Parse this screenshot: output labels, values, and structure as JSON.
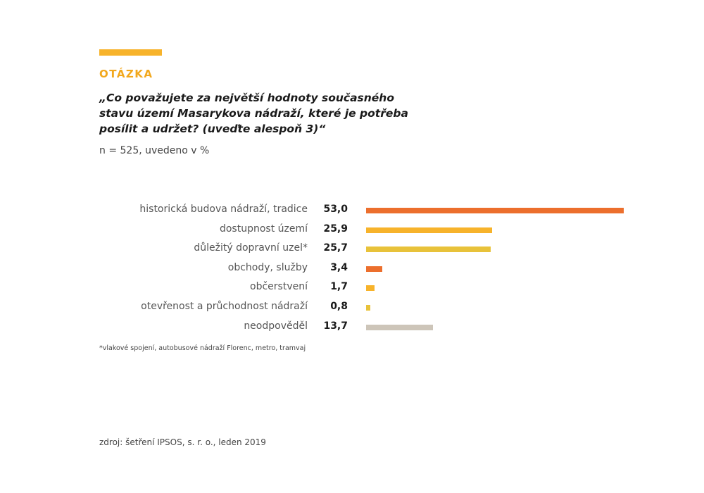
{
  "header": {
    "kicker": "OTÁZKA",
    "question_line1": "„Co považujete za největší hodnoty současného",
    "question_line2": "stavu území Masarykova nádraží, které je potřeba",
    "question_line3": "posílit a udržet? (uveďte alespoň 3)“",
    "sample": "n = 525, uvedeno v %"
  },
  "colors": {
    "accent": "#f7b32b",
    "orange": "#ec6f2d",
    "yellow": "#f7b32b",
    "mustard": "#e8c23a",
    "gray": "#cdc5b9"
  },
  "chart_data": {
    "type": "bar",
    "orientation": "horizontal",
    "categories": [
      "historická budova nádraží, tradice",
      "dostupnost území",
      "důležitý dopravní uzel*",
      "obchody, služby",
      "občerstvení",
      "otevřenost a průchodnost nádraží",
      "neodpověděl"
    ],
    "values": [
      53.0,
      25.9,
      25.7,
      3.4,
      1.7,
      0.8,
      13.7
    ],
    "value_labels": [
      "53,0",
      "25,9",
      "25,7",
      "3,4",
      "1,7",
      "0,8",
      "13,7"
    ],
    "bar_colors": [
      "#ec6f2d",
      "#f7b32b",
      "#e8c23a",
      "#ec6f2d",
      "#f7b32b",
      "#e8c23a",
      "#cdc5b9"
    ],
    "xlim": [
      0,
      53.0
    ],
    "grid": false
  },
  "footnote": "*vlakové spojení, autobusové nádraží Florenc, metro, tramvaj",
  "source": "zdroj: šetření IPSOS, s. r. o., leden 2019"
}
